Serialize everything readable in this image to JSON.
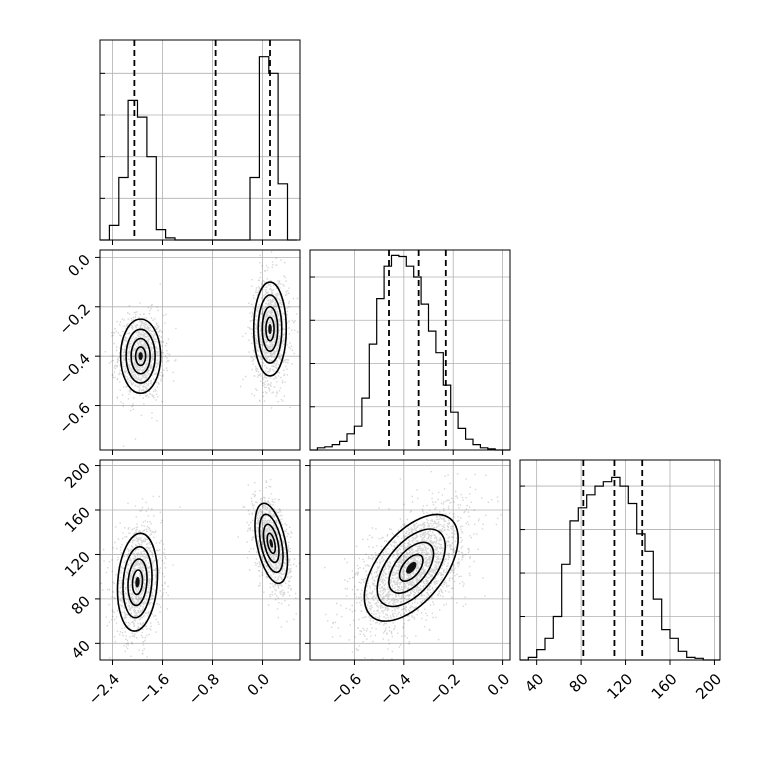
{
  "chart_data": {
    "type": "corner",
    "title": "",
    "parameters": [
      {
        "range": [
          -2.6,
          0.6
        ],
        "ticks": [
          -2.4,
          -1.6,
          -0.8,
          0.0
        ],
        "tick_labels": [
          "−2.4",
          "−1.6",
          "−0.8",
          "0.0"
        ]
      },
      {
        "range": [
          -0.78,
          0.03
        ],
        "ticks": [
          -0.6,
          -0.4,
          -0.2,
          0.0
        ],
        "tick_labels": [
          "−0.6",
          "−0.4",
          "−0.2",
          "0.0"
        ]
      },
      {
        "range": [
          25,
          205
        ],
        "ticks": [
          40,
          80,
          120,
          160,
          200
        ],
        "tick_labels": [
          "40",
          "80",
          "120",
          "160",
          "200"
        ]
      }
    ],
    "histograms": [
      {
        "param": 0,
        "bin_edges": [
          -2.6,
          -2.45,
          -2.3,
          -2.15,
          -2.0,
          -1.85,
          -1.7,
          -1.55,
          -1.4,
          -1.25,
          -1.1,
          -0.95,
          -0.8,
          -0.65,
          -0.5,
          -0.35,
          -0.2,
          -0.05,
          0.1,
          0.25,
          0.4,
          0.55
        ],
        "counts": [
          0,
          35,
          150,
          335,
          295,
          200,
          25,
          5,
          0,
          0,
          0,
          0,
          0,
          0,
          0,
          0,
          150,
          440,
          400,
          135,
          0
        ],
        "ylim": [
          0,
          480
        ],
        "quantiles": [
          -2.05,
          -0.75,
          0.12
        ],
        "grid": true
      },
      {
        "param": 1,
        "bin_edges": [
          -0.78,
          -0.75,
          -0.72,
          -0.69,
          -0.66,
          -0.63,
          -0.6,
          -0.57,
          -0.54,
          -0.51,
          -0.48,
          -0.45,
          -0.42,
          -0.39,
          -0.36,
          -0.33,
          -0.3,
          -0.27,
          -0.24,
          -0.21,
          -0.18,
          -0.15,
          -0.12,
          -0.09,
          -0.06,
          -0.03,
          0.0,
          0.03
        ],
        "counts": [
          0,
          2,
          3,
          5,
          8,
          15,
          22,
          48,
          98,
          140,
          170,
          180,
          179,
          170,
          160,
          135,
          110,
          90,
          60,
          35,
          20,
          10,
          5,
          2,
          1,
          0,
          0
        ],
        "ylim": [
          0,
          185
        ],
        "quantiles": [
          -0.46,
          -0.34,
          -0.23
        ],
        "grid": true
      },
      {
        "param": 2,
        "bin_edges": [
          25,
          32.5,
          40,
          47.5,
          55,
          62.5,
          70,
          77.5,
          85,
          92.5,
          100,
          107.5,
          115,
          122.5,
          130,
          137.5,
          145,
          152.5,
          160,
          167.5,
          175,
          182.5,
          190,
          197.5,
          205
        ],
        "counts": [
          0,
          3,
          12,
          25,
          50,
          110,
          160,
          175,
          190,
          200,
          205,
          210,
          200,
          180,
          145,
          125,
          70,
          35,
          25,
          10,
          3,
          2,
          0,
          0
        ],
        "ylim": [
          0,
          230
        ],
        "quantiles": [
          82,
          110,
          135
        ],
        "grid": true
      }
    ],
    "scatter_panels": [
      {
        "x_param": 0,
        "y_param": 1,
        "modes": [
          {
            "x": -1.95,
            "y": -0.4,
            "sx": 0.16,
            "sy": 0.075,
            "rho": 0.0,
            "n": 1100,
            "grey": 0.9
          },
          {
            "x": 0.12,
            "y": -0.29,
            "sx": 0.13,
            "sy": 0.095,
            "rho": 0.0,
            "n": 1100,
            "grey": 0.9
          }
        ]
      },
      {
        "x_param": 0,
        "y_param": 2,
        "modes": [
          {
            "x": -2.0,
            "y": 95,
            "sx": 0.16,
            "sy": 22,
            "rho": 0.15,
            "n": 1100,
            "grey": 0.9
          },
          {
            "x": 0.14,
            "y": 130,
            "sx": 0.13,
            "sy": 18,
            "rho": -0.45,
            "n": 1100,
            "grey": 0.9
          }
        ]
      },
      {
        "x_param": 1,
        "y_param": 2,
        "modes": [
          {
            "x": -0.37,
            "y": 108,
            "sx": 0.095,
            "sy": 24,
            "rho": 0.55,
            "n": 2200,
            "grey": 0.95
          }
        ]
      }
    ],
    "grid": true,
    "legend": "none"
  }
}
